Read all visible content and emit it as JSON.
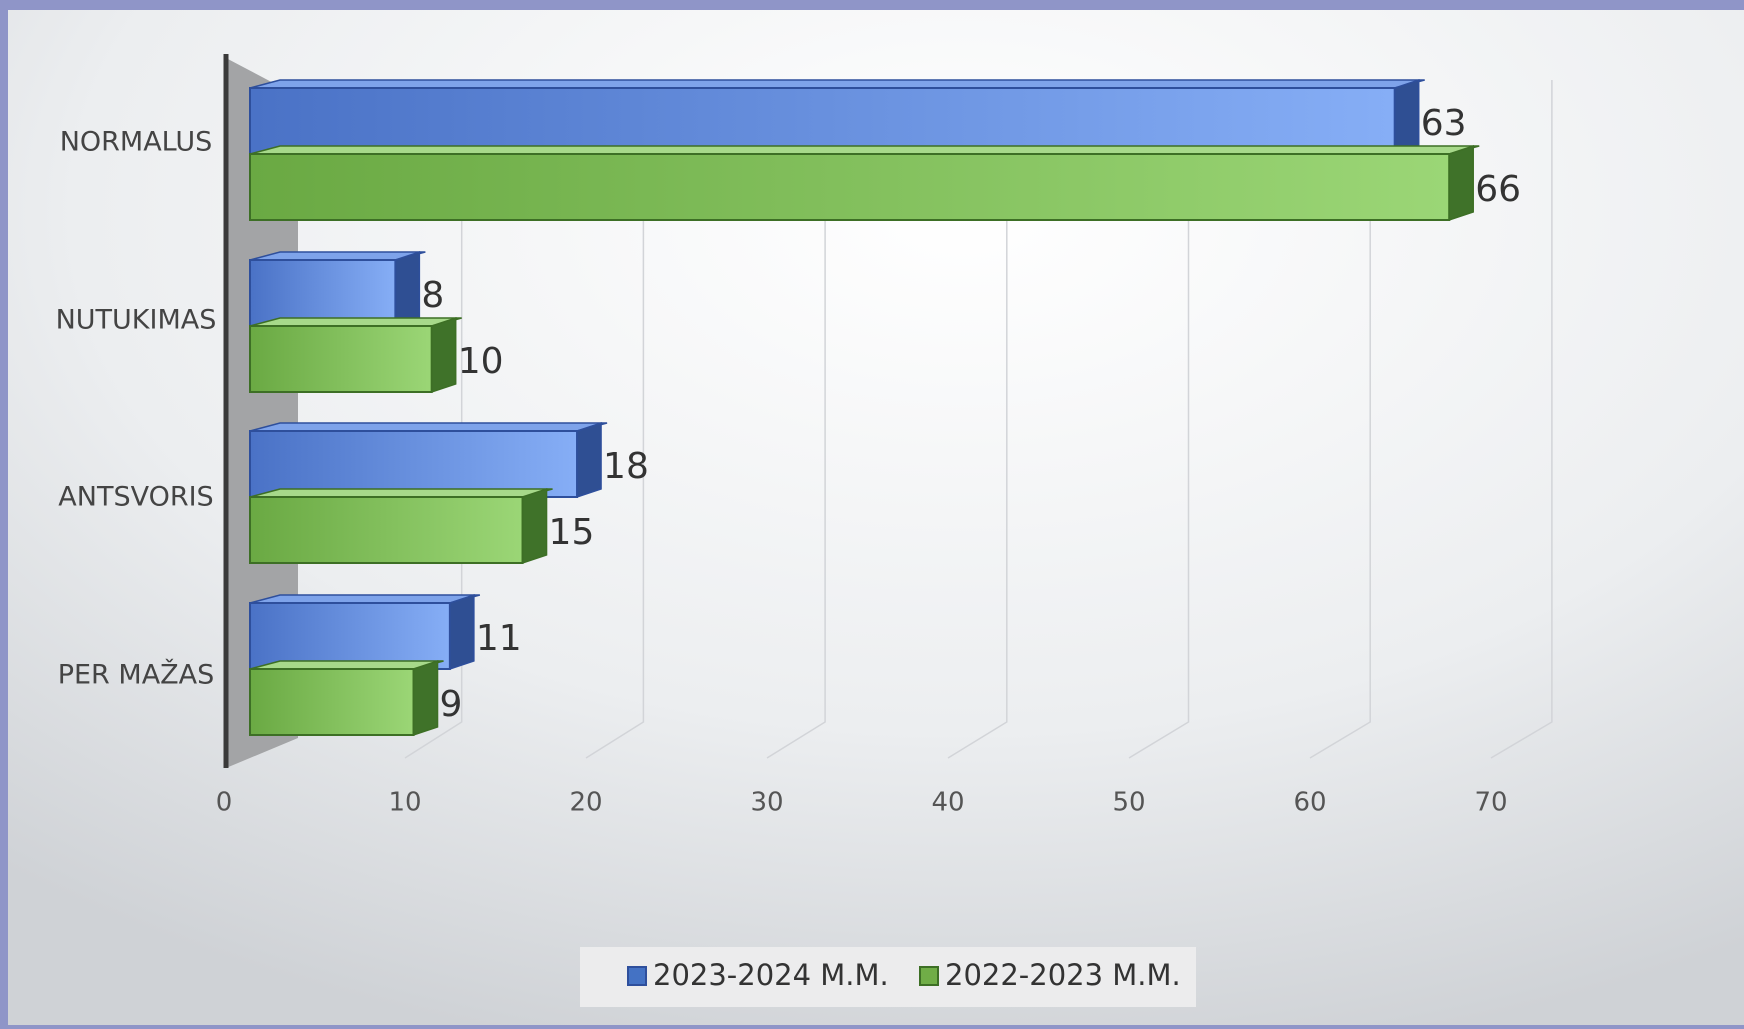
{
  "chart_data": {
    "type": "bar",
    "orientation": "horizontal",
    "style": "3d",
    "categories": [
      "NORMALUS",
      "NUTUKIMAS",
      "ANTSVORIS",
      "PER MAŽAS"
    ],
    "series": [
      {
        "name": "2023-2024 M.M.",
        "values": [
          63,
          8,
          18,
          11
        ],
        "color": "#4472c4"
      },
      {
        "name": "2022-2023 M.M.",
        "values": [
          66,
          10,
          15,
          9
        ],
        "color": "#70ad47"
      }
    ],
    "xlim": [
      0,
      70
    ],
    "xticks": [
      "0",
      "10",
      "20",
      "30",
      "40",
      "50",
      "60",
      "70"
    ],
    "grid": true,
    "legend": "bottom"
  }
}
